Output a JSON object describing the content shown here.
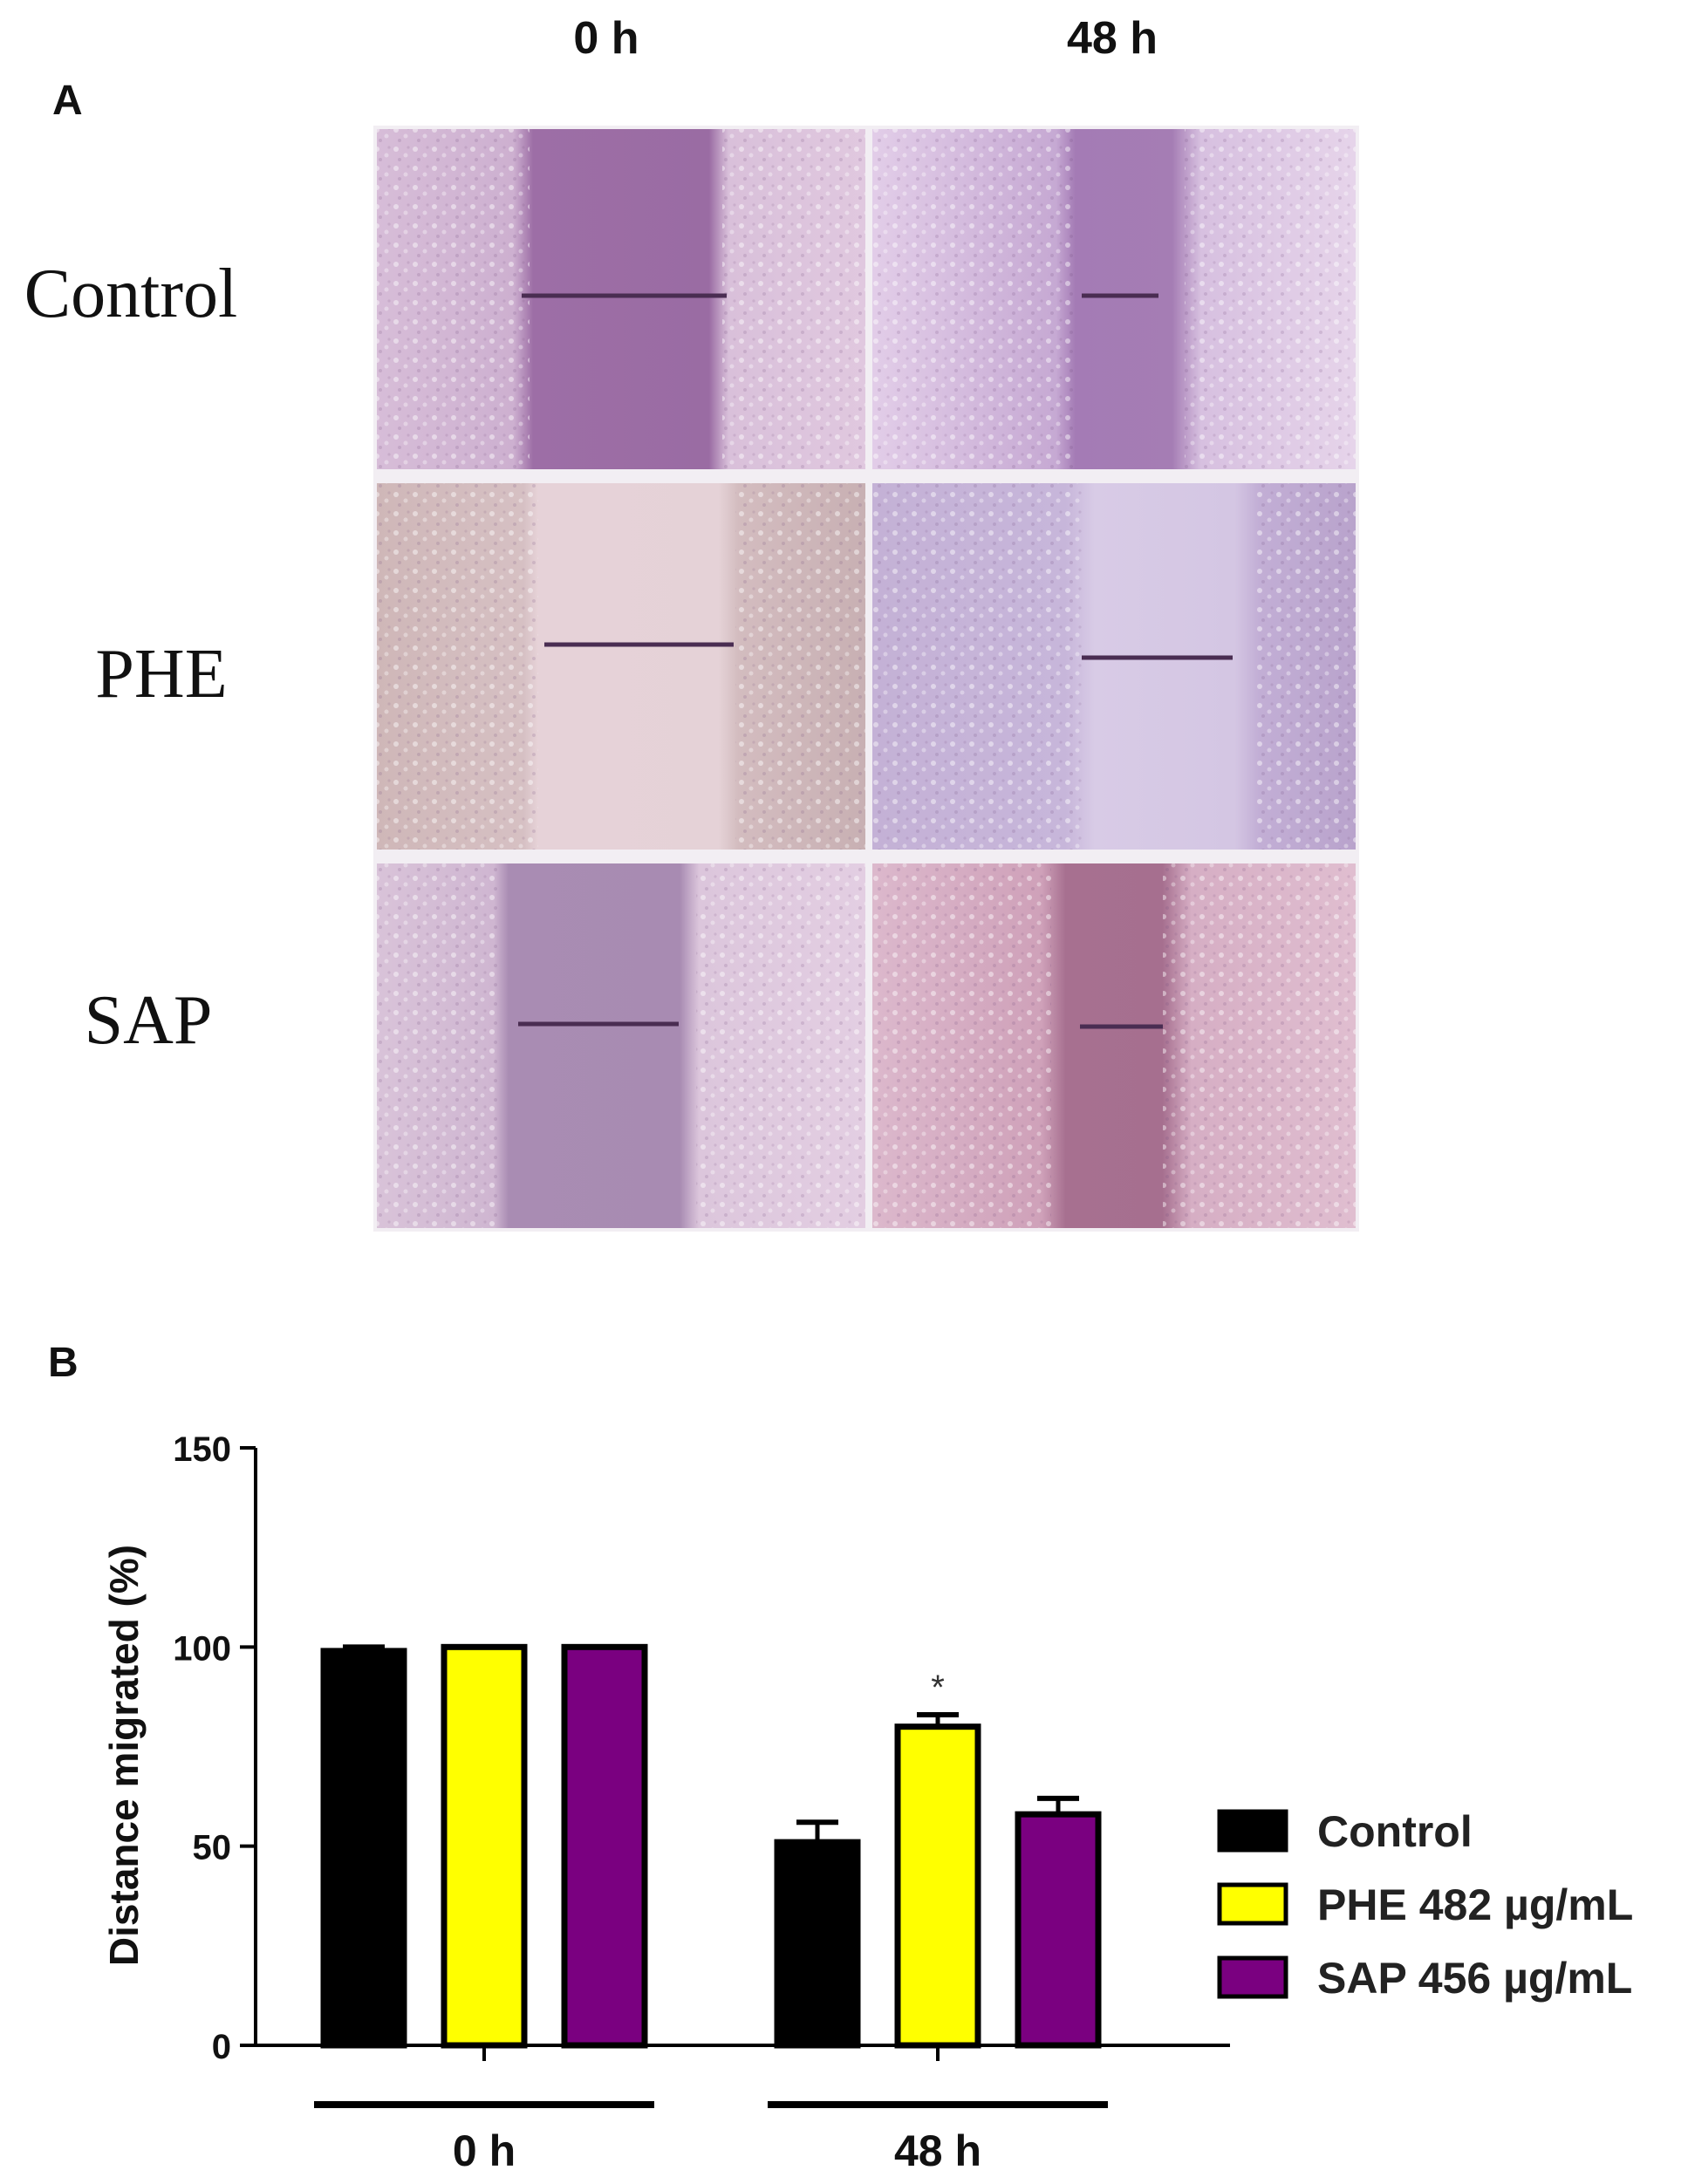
{
  "panel_a": {
    "label": "A",
    "columns": [
      "0 h",
      "48 h"
    ],
    "rows": [
      "Control",
      "PHE",
      "SAP"
    ]
  },
  "panel_b": {
    "label": "B"
  },
  "chart_data": {
    "type": "bar",
    "title": "",
    "ylabel": "Distance migrated (%)",
    "xlabel": "",
    "ylim": [
      0,
      150
    ],
    "yticks": [
      0,
      50,
      100,
      150
    ],
    "categories": [
      "0 h",
      "48 h"
    ],
    "series": [
      {
        "name": "Control",
        "color": "#000000",
        "values": [
          99,
          51
        ],
        "errors": [
          1,
          5
        ]
      },
      {
        "name": "PHE 482 µg/mL",
        "color": "#ffff00",
        "values": [
          100,
          80
        ],
        "errors": [
          0,
          3
        ]
      },
      {
        "name": "SAP 456 µg/mL",
        "color": "#7a0080",
        "values": [
          100,
          58
        ],
        "errors": [
          0,
          4
        ]
      }
    ],
    "annotations": [
      {
        "category": "48 h",
        "series": "PHE 482 µg/mL",
        "text": "*"
      }
    ],
    "legend": "right",
    "grid": false
  }
}
